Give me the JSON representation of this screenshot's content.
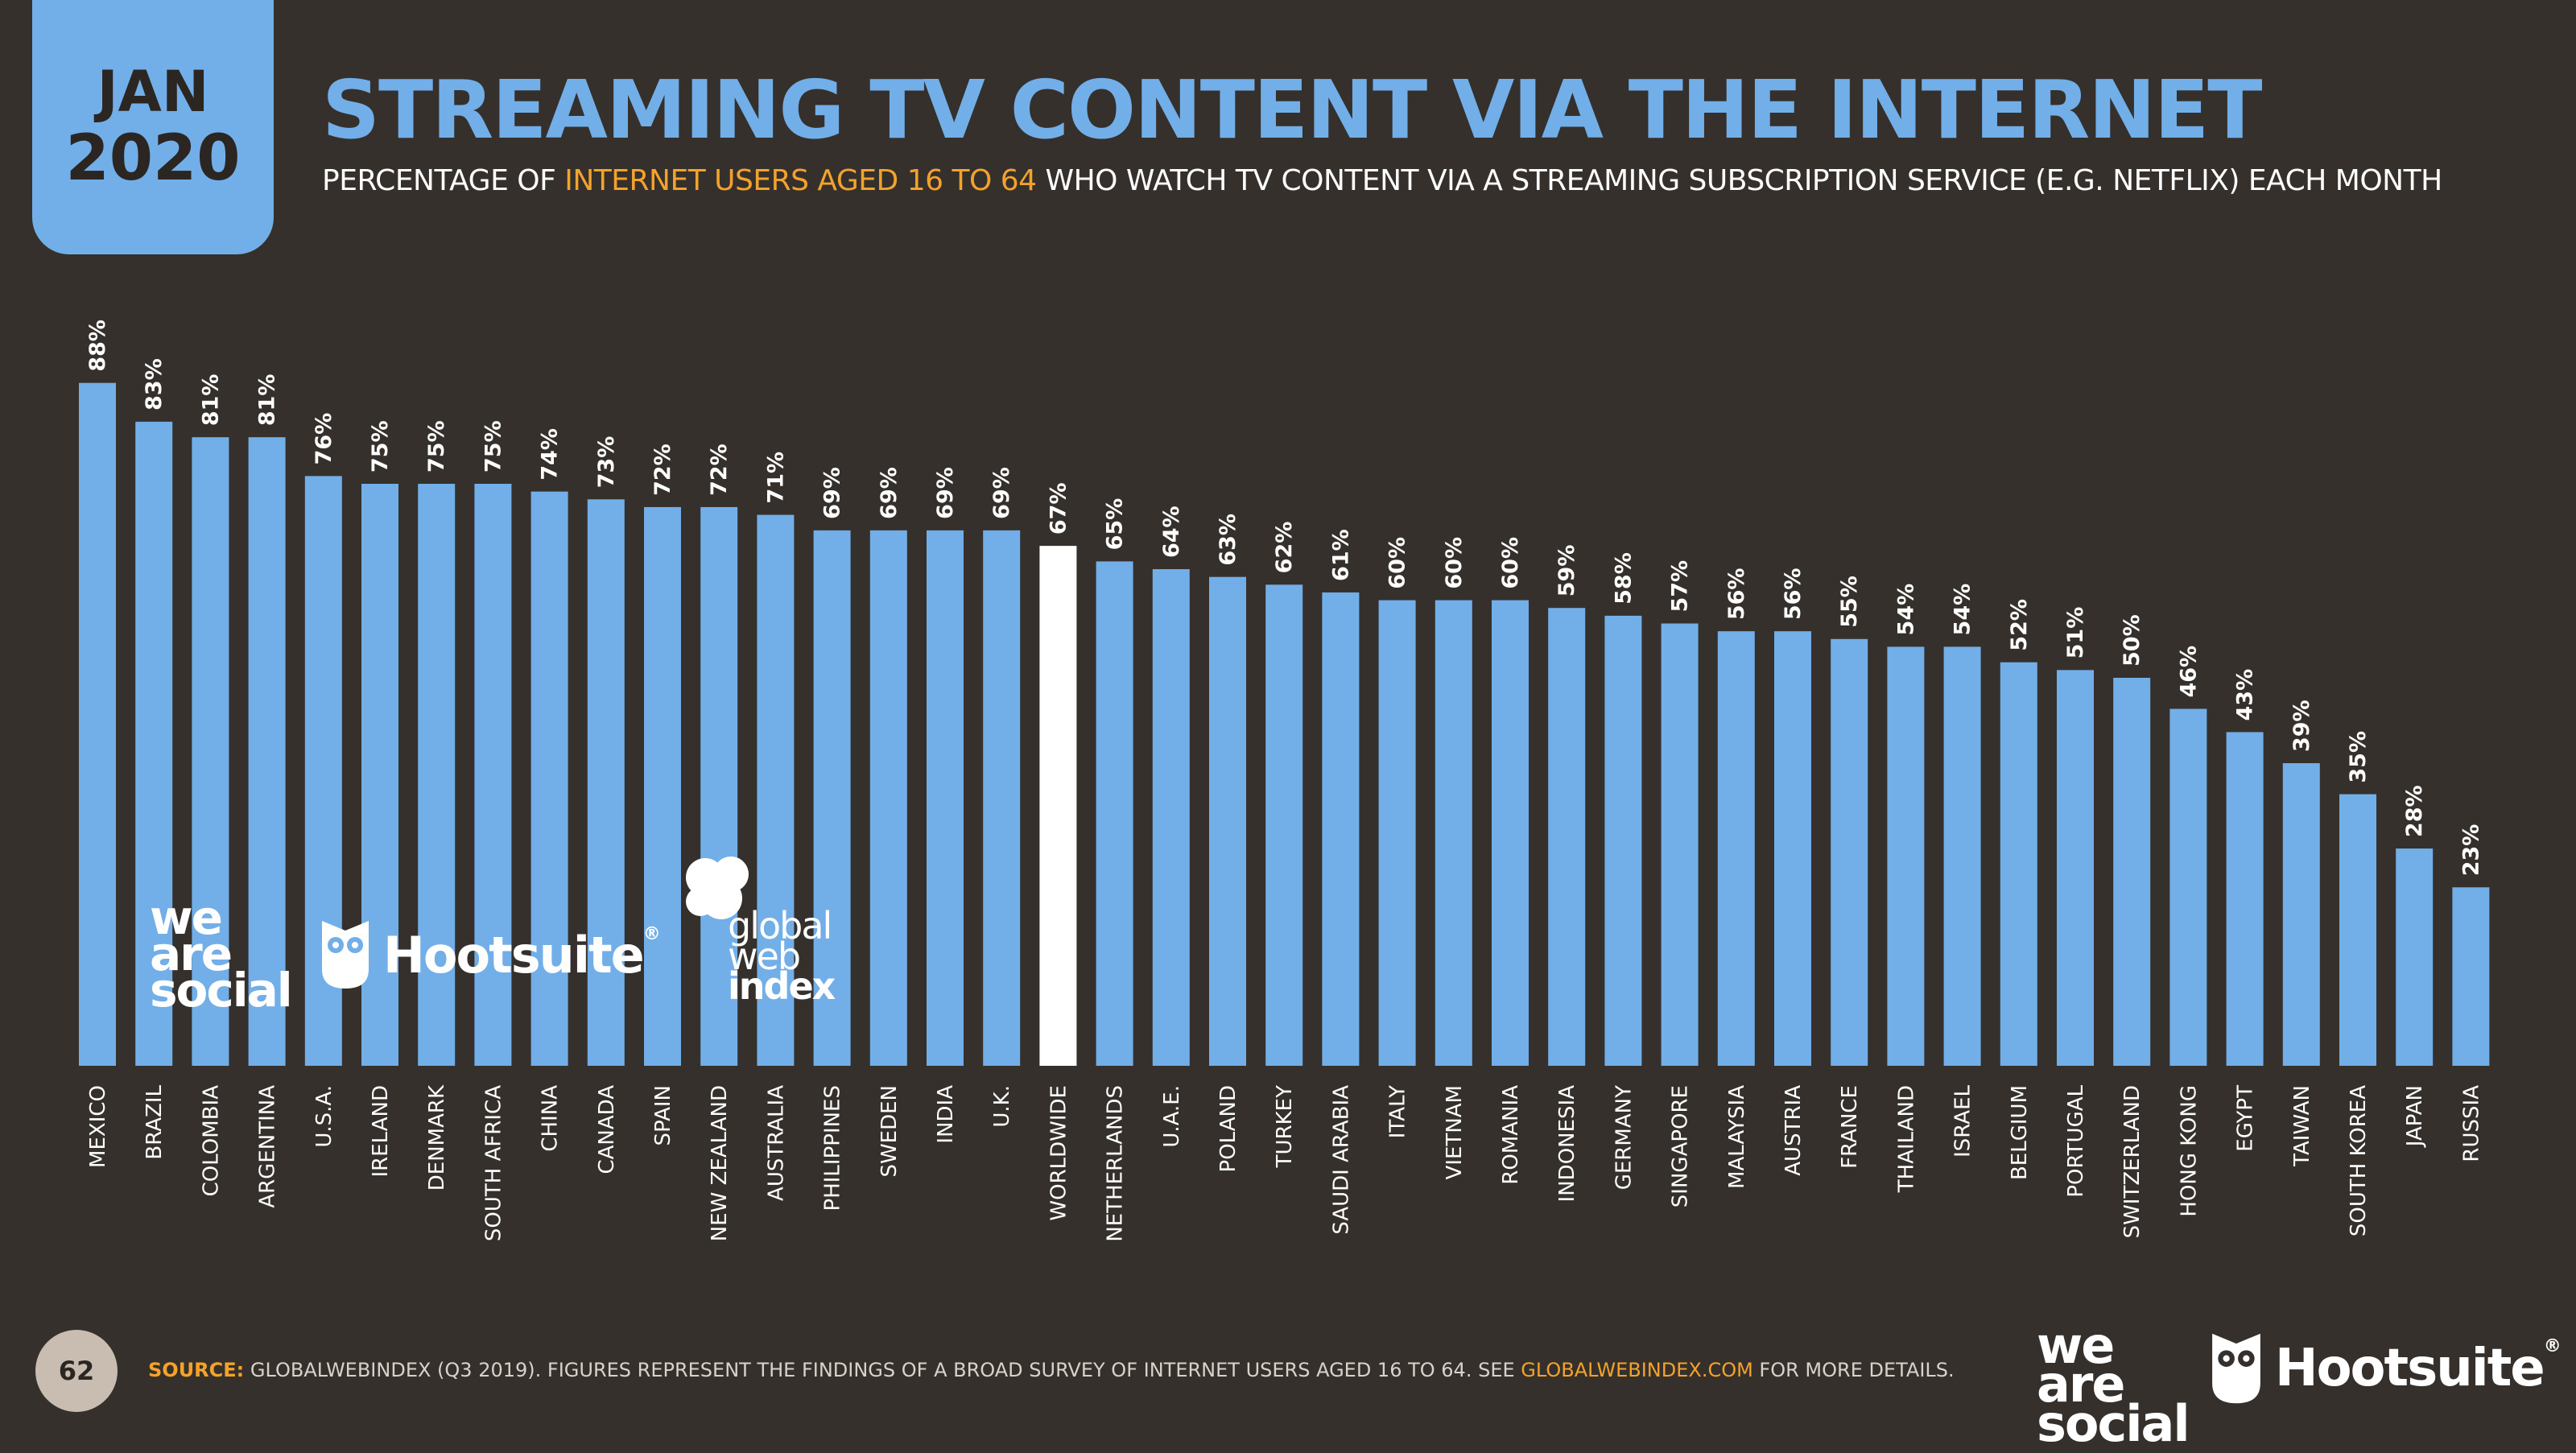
{
  "header": {
    "month": "JAN",
    "year": "2020",
    "title": "STREAMING TV CONTENT VIA THE INTERNET",
    "subtitle_pre": "PERCENTAGE OF ",
    "subtitle_highlight": "INTERNET USERS AGED 16 TO 64",
    "subtitle_post": " WHO WATCH TV CONTENT VIA A STREAMING SUBSCRIPTION SERVICE (E.G. NETFLIX) EACH MONTH"
  },
  "chart_data": {
    "type": "bar",
    "title": "STREAMING TV CONTENT VIA THE INTERNET",
    "xlabel": "",
    "ylabel": "",
    "ylim": [
      0,
      100
    ],
    "unit": "%",
    "highlight_category": "WORLDWIDE",
    "categories": [
      "MEXICO",
      "BRAZIL",
      "COLOMBIA",
      "ARGENTINA",
      "U.S.A.",
      "IRELAND",
      "DENMARK",
      "SOUTH AFRICA",
      "CHINA",
      "CANADA",
      "SPAIN",
      "NEW ZEALAND",
      "AUSTRALIA",
      "PHILIPPINES",
      "SWEDEN",
      "INDIA",
      "U.K.",
      "WORLDWIDE",
      "NETHERLANDS",
      "U.A.E.",
      "POLAND",
      "TURKEY",
      "SAUDI ARABIA",
      "ITALY",
      "VIETNAM",
      "ROMANIA",
      "INDONESIA",
      "GERMANY",
      "SINGAPORE",
      "MALAYSIA",
      "AUSTRIA",
      "FRANCE",
      "THAILAND",
      "ISRAEL",
      "BELGIUM",
      "PORTUGAL",
      "SWITZERLAND",
      "HONG KONG",
      "EGYPT",
      "TAIWAN",
      "SOUTH KOREA",
      "JAPAN",
      "RUSSIA"
    ],
    "values": [
      88,
      83,
      81,
      81,
      76,
      75,
      75,
      75,
      74,
      73,
      72,
      72,
      71,
      69,
      69,
      69,
      69,
      67,
      65,
      64,
      63,
      62,
      61,
      60,
      60,
      60,
      59,
      58,
      57,
      56,
      56,
      55,
      54,
      54,
      52,
      51,
      50,
      46,
      43,
      39,
      35,
      28,
      23
    ],
    "bar_labels": [
      "88%",
      "83%",
      "81%",
      "81%",
      "76%",
      "75%",
      "75%",
      "75%",
      "74%",
      "73%",
      "72%",
      "72%",
      "71%",
      "69%",
      "69%",
      "69%",
      "69%",
      "67%",
      "65%",
      "64%",
      "63%",
      "62%",
      "61%",
      "60%",
      "60%",
      "60%",
      "59%",
      "58%",
      "57%",
      "56%",
      "56%",
      "55%",
      "54%",
      "54%",
      "52%",
      "51%",
      "50%",
      "46%",
      "43%",
      "39%",
      "35%",
      "28%",
      "23%"
    ]
  },
  "colors": {
    "background": "#35302b",
    "accent_blue": "#72aee8",
    "highlight_bar": "#ffffff",
    "orange": "#f3a22c"
  },
  "footer": {
    "page_number": "62",
    "source_label": "SOURCE:",
    "source_text": " GLOBALWEBINDEX (Q3 2019). FIGURES REPRESENT THE FINDINGS OF A BROAD SURVEY OF INTERNET USERS AGED 16 TO 64. SEE ",
    "source_link": "GLOBALWEBINDEX.COM",
    "source_tail": " FOR MORE DETAILS."
  },
  "logos": {
    "was_line1": "we",
    "was_line2": "are",
    "was_line3": "social",
    "hootsuite": "Hootsuite",
    "hootsuite_mark": "®",
    "gwi_line1": "global",
    "gwi_line2": "web",
    "gwi_line3": "index"
  }
}
